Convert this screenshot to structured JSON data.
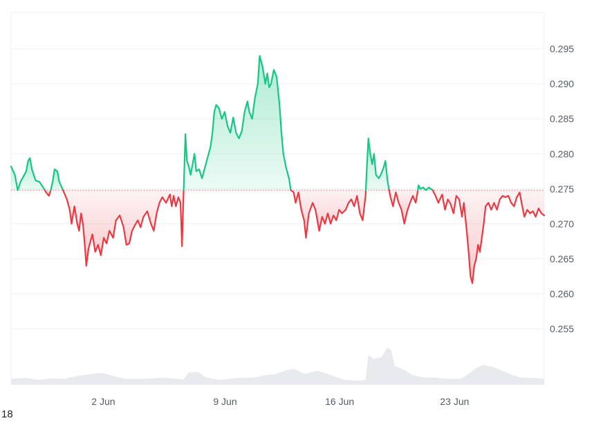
{
  "chart_data": {
    "type": "line",
    "baseline": 0.2748,
    "ylim": [
      0.25,
      0.3
    ],
    "yticks": [
      "0.295",
      "0.290",
      "0.285",
      "0.280",
      "0.275",
      "0.270",
      "0.265",
      "0.260",
      "0.255"
    ],
    "ytick_values": [
      0.295,
      0.29,
      0.285,
      0.28,
      0.275,
      0.27,
      0.265,
      0.26,
      0.255
    ],
    "xlim_days": [
      0,
      28.2
    ],
    "xticks": [
      {
        "label": "2 Jun",
        "day": 4.88
      },
      {
        "label": "9 Jun",
        "day": 11.32
      },
      {
        "label": "16 Jun",
        "day": 17.38
      },
      {
        "label": "23 Jun",
        "day": 23.46
      }
    ],
    "grid": true,
    "colors": {
      "up": "#16c784",
      "down": "#ea3943",
      "up_fill": "#16c784",
      "down_fill": "#ea3943",
      "volume": "#e8eaed",
      "grid": "#eef0f3",
      "baseline": "#ea3943"
    },
    "series": [
      {
        "points": [
          [
            0.0,
            0.2782
          ],
          [
            0.2,
            0.277
          ],
          [
            0.35,
            0.2748
          ],
          [
            0.5,
            0.276
          ],
          [
            0.8,
            0.2775
          ],
          [
            0.9,
            0.279
          ],
          [
            1.0,
            0.2794
          ],
          [
            1.1,
            0.2778
          ],
          [
            1.3,
            0.2762
          ],
          [
            1.5,
            0.276
          ],
          [
            1.7,
            0.2752
          ],
          [
            1.85,
            0.2745
          ],
          [
            2.0,
            0.274
          ],
          [
            2.1,
            0.2748
          ],
          [
            2.2,
            0.276
          ],
          [
            2.3,
            0.2778
          ],
          [
            2.45,
            0.2775
          ],
          [
            2.55,
            0.276
          ],
          [
            2.75,
            0.2748
          ],
          [
            2.95,
            0.2735
          ],
          [
            3.1,
            0.272
          ],
          [
            3.2,
            0.27
          ],
          [
            3.35,
            0.2725
          ],
          [
            3.5,
            0.27
          ],
          [
            3.6,
            0.269
          ],
          [
            3.7,
            0.2715
          ],
          [
            3.8,
            0.27
          ],
          [
            3.9,
            0.267
          ],
          [
            3.98,
            0.264
          ],
          [
            4.1,
            0.2665
          ],
          [
            4.3,
            0.2685
          ],
          [
            4.45,
            0.266
          ],
          [
            4.6,
            0.267
          ],
          [
            4.75,
            0.2655
          ],
          [
            4.9,
            0.268
          ],
          [
            5.05,
            0.2672
          ],
          [
            5.2,
            0.269
          ],
          [
            5.4,
            0.268
          ],
          [
            5.55,
            0.2705
          ],
          [
            5.75,
            0.2712
          ],
          [
            5.95,
            0.2695
          ],
          [
            6.1,
            0.267
          ],
          [
            6.25,
            0.2672
          ],
          [
            6.4,
            0.269
          ],
          [
            6.55,
            0.2698
          ],
          [
            6.7,
            0.2705
          ],
          [
            6.85,
            0.2695
          ],
          [
            7.0,
            0.271
          ],
          [
            7.2,
            0.2718
          ],
          [
            7.4,
            0.27
          ],
          [
            7.55,
            0.269
          ],
          [
            7.7,
            0.2715
          ],
          [
            7.85,
            0.273
          ],
          [
            8.0,
            0.2738
          ],
          [
            8.2,
            0.273
          ],
          [
            8.4,
            0.2742
          ],
          [
            8.5,
            0.2725
          ],
          [
            8.6,
            0.274
          ],
          [
            8.72,
            0.2725
          ],
          [
            8.85,
            0.2738
          ],
          [
            8.96,
            0.273
          ],
          [
            9.04,
            0.2668
          ],
          [
            9.12,
            0.274
          ],
          [
            9.22,
            0.2828
          ],
          [
            9.3,
            0.279
          ],
          [
            9.4,
            0.2782
          ],
          [
            9.5,
            0.277
          ],
          [
            9.6,
            0.2785
          ],
          [
            9.7,
            0.28
          ],
          [
            9.8,
            0.2775
          ],
          [
            9.95,
            0.2778
          ],
          [
            10.1,
            0.2765
          ],
          [
            10.25,
            0.278
          ],
          [
            10.4,
            0.2795
          ],
          [
            10.55,
            0.281
          ],
          [
            10.65,
            0.283
          ],
          [
            10.75,
            0.286
          ],
          [
            10.85,
            0.287
          ],
          [
            11.0,
            0.2865
          ],
          [
            11.15,
            0.285
          ],
          [
            11.3,
            0.286
          ],
          [
            11.45,
            0.284
          ],
          [
            11.6,
            0.283
          ],
          [
            11.75,
            0.2852
          ],
          [
            11.9,
            0.283
          ],
          [
            12.05,
            0.2822
          ],
          [
            12.2,
            0.2832
          ],
          [
            12.35,
            0.286
          ],
          [
            12.5,
            0.2875
          ],
          [
            12.6,
            0.286
          ],
          [
            12.75,
            0.285
          ],
          [
            12.9,
            0.288
          ],
          [
            13.05,
            0.29
          ],
          [
            13.15,
            0.294
          ],
          [
            13.3,
            0.2925
          ],
          [
            13.45,
            0.29
          ],
          [
            13.55,
            0.2915
          ],
          [
            13.65,
            0.2895
          ],
          [
            13.75,
            0.29
          ],
          [
            13.9,
            0.292
          ],
          [
            14.05,
            0.291
          ],
          [
            14.2,
            0.287
          ],
          [
            14.3,
            0.283
          ],
          [
            14.4,
            0.28
          ],
          [
            14.55,
            0.278
          ],
          [
            14.7,
            0.2765
          ],
          [
            14.8,
            0.2748
          ],
          [
            14.95,
            0.2745
          ],
          [
            15.05,
            0.273
          ],
          [
            15.2,
            0.2745
          ],
          [
            15.35,
            0.272
          ],
          [
            15.5,
            0.2705
          ],
          [
            15.6,
            0.268
          ],
          [
            15.75,
            0.2715
          ],
          [
            15.95,
            0.273
          ],
          [
            16.1,
            0.272
          ],
          [
            16.3,
            0.269
          ],
          [
            16.45,
            0.271
          ],
          [
            16.6,
            0.27
          ],
          [
            16.75,
            0.2715
          ],
          [
            16.9,
            0.27
          ],
          [
            17.05,
            0.2712
          ],
          [
            17.2,
            0.2705
          ],
          [
            17.35,
            0.272
          ],
          [
            17.5,
            0.2715
          ],
          [
            17.7,
            0.272
          ],
          [
            17.85,
            0.273
          ],
          [
            18.0,
            0.2735
          ],
          [
            18.15,
            0.2725
          ],
          [
            18.3,
            0.274
          ],
          [
            18.45,
            0.2715
          ],
          [
            18.6,
            0.2705
          ],
          [
            18.75,
            0.274
          ],
          [
            18.82,
            0.278
          ],
          [
            18.9,
            0.2822
          ],
          [
            19.0,
            0.28
          ],
          [
            19.1,
            0.2785
          ],
          [
            19.2,
            0.28
          ],
          [
            19.3,
            0.277
          ],
          [
            19.45,
            0.2765
          ],
          [
            19.55,
            0.277
          ],
          [
            19.7,
            0.278
          ],
          [
            19.8,
            0.279
          ],
          [
            19.92,
            0.276
          ],
          [
            20.05,
            0.274
          ],
          [
            20.2,
            0.2725
          ],
          [
            20.35,
            0.2745
          ],
          [
            20.5,
            0.273
          ],
          [
            20.65,
            0.272
          ],
          [
            20.8,
            0.27
          ],
          [
            20.95,
            0.2718
          ],
          [
            21.1,
            0.273
          ],
          [
            21.25,
            0.274
          ],
          [
            21.4,
            0.273
          ],
          [
            21.5,
            0.2745
          ],
          [
            21.55,
            0.2755
          ],
          [
            21.65,
            0.275
          ],
          [
            21.8,
            0.2752
          ],
          [
            21.95,
            0.2748
          ],
          [
            22.1,
            0.2752
          ],
          [
            22.3,
            0.2748
          ],
          [
            22.45,
            0.274
          ],
          [
            22.6,
            0.273
          ],
          [
            22.8,
            0.2742
          ],
          [
            22.95,
            0.272
          ],
          [
            23.1,
            0.2735
          ],
          [
            23.25,
            0.2728
          ],
          [
            23.4,
            0.2715
          ],
          [
            23.55,
            0.274
          ],
          [
            23.7,
            0.2735
          ],
          [
            23.85,
            0.271
          ],
          [
            23.95,
            0.273
          ],
          [
            24.1,
            0.269
          ],
          [
            24.2,
            0.266
          ],
          [
            24.3,
            0.2625
          ],
          [
            24.4,
            0.2615
          ],
          [
            24.5,
            0.264
          ],
          [
            24.6,
            0.265
          ],
          [
            24.7,
            0.267
          ],
          [
            24.8,
            0.266
          ],
          [
            24.9,
            0.268
          ],
          [
            25.0,
            0.27
          ],
          [
            25.1,
            0.2725
          ],
          [
            25.25,
            0.273
          ],
          [
            25.4,
            0.272
          ],
          [
            25.55,
            0.273
          ],
          [
            25.7,
            0.272
          ],
          [
            25.85,
            0.2735
          ],
          [
            26.0,
            0.274
          ],
          [
            26.15,
            0.2738
          ],
          [
            26.3,
            0.274
          ],
          [
            26.45,
            0.273
          ],
          [
            26.6,
            0.2725
          ],
          [
            26.75,
            0.2738
          ],
          [
            26.9,
            0.2745
          ],
          [
            27.0,
            0.273
          ],
          [
            27.15,
            0.271
          ],
          [
            27.3,
            0.272
          ],
          [
            27.45,
            0.2715
          ],
          [
            27.6,
            0.2718
          ],
          [
            27.75,
            0.271
          ],
          [
            27.9,
            0.2722
          ],
          [
            28.05,
            0.2715
          ],
          [
            28.2,
            0.2712
          ]
        ]
      }
    ],
    "volume": [
      [
        0,
        0.12
      ],
      [
        0.8,
        0.14
      ],
      [
        1.4,
        0.1
      ],
      [
        2.2,
        0.13
      ],
      [
        2.8,
        0.12
      ],
      [
        3.5,
        0.18
      ],
      [
        4.3,
        0.22
      ],
      [
        4.8,
        0.24
      ],
      [
        5.4,
        0.18
      ],
      [
        6.0,
        0.12
      ],
      [
        7.0,
        0.12
      ],
      [
        8.0,
        0.14
      ],
      [
        8.8,
        0.12
      ],
      [
        9.1,
        0.1
      ],
      [
        9.4,
        0.25
      ],
      [
        9.9,
        0.26
      ],
      [
        10.3,
        0.15
      ],
      [
        11.0,
        0.1
      ],
      [
        12.0,
        0.14
      ],
      [
        12.8,
        0.14
      ],
      [
        13.5,
        0.2
      ],
      [
        14.0,
        0.22
      ],
      [
        14.6,
        0.3
      ],
      [
        15.0,
        0.32
      ],
      [
        15.5,
        0.22
      ],
      [
        16.2,
        0.28
      ],
      [
        16.9,
        0.2
      ],
      [
        17.6,
        0.1
      ],
      [
        18.4,
        0.08
      ],
      [
        18.75,
        0.1
      ],
      [
        18.9,
        0.6
      ],
      [
        19.2,
        0.52
      ],
      [
        19.6,
        0.56
      ],
      [
        19.9,
        0.75
      ],
      [
        20.1,
        0.7
      ],
      [
        20.3,
        0.38
      ],
      [
        20.8,
        0.3
      ],
      [
        21.2,
        0.2
      ],
      [
        21.8,
        0.15
      ],
      [
        22.5,
        0.14
      ],
      [
        23.2,
        0.12
      ],
      [
        23.8,
        0.12
      ],
      [
        24.2,
        0.22
      ],
      [
        24.6,
        0.34
      ],
      [
        25.0,
        0.4
      ],
      [
        25.5,
        0.36
      ],
      [
        26.0,
        0.28
      ],
      [
        26.5,
        0.2
      ],
      [
        27.0,
        0.14
      ],
      [
        27.6,
        0.14
      ],
      [
        28.2,
        0.12
      ]
    ]
  },
  "corner_label": "18"
}
